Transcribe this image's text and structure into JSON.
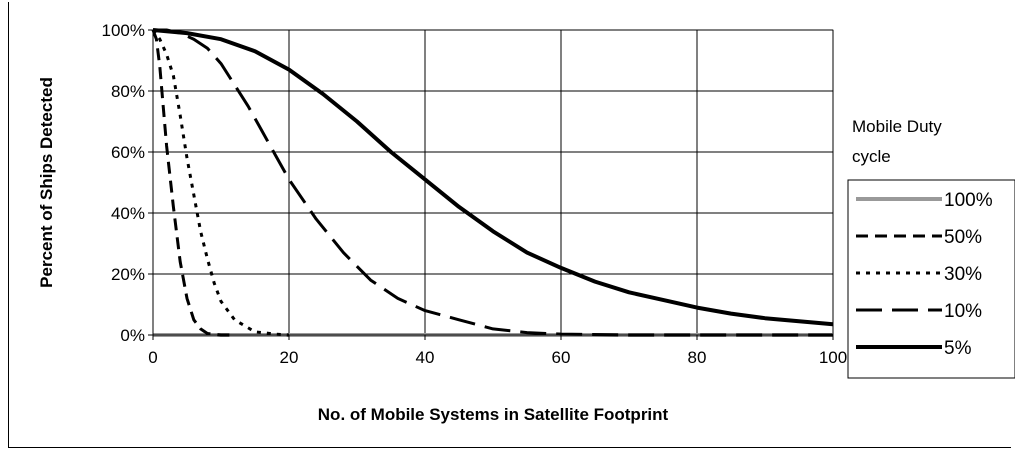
{
  "chart_data": {
    "type": "line",
    "title": "",
    "xlabel": "No. of Mobile Systems in Satellite Footprint",
    "ylabel": "Percent of Ships Detected",
    "xlim": [
      0,
      100
    ],
    "ylim": [
      0,
      1
    ],
    "x_ticks": [
      0,
      20,
      40,
      60,
      80,
      100
    ],
    "x_tick_labels": [
      "0",
      "20",
      "40",
      "60",
      "80",
      "100"
    ],
    "y_ticks": [
      0,
      0.2,
      0.4,
      0.6,
      0.8,
      1.0
    ],
    "y_tick_labels": [
      "0%",
      "20%",
      "40%",
      "60%",
      "80%",
      "100%"
    ],
    "grid": true,
    "legend_title": [
      "Mobile Duty",
      "cycle"
    ],
    "legend_position": "right",
    "series": [
      {
        "name": "100%",
        "color": "#999999",
        "style": "solid",
        "width": 4,
        "x": [
          0,
          100
        ],
        "y": [
          0,
          0
        ]
      },
      {
        "name": "50%",
        "color": "#000000",
        "style": "dash",
        "width": 3,
        "x": [
          0,
          0.5,
          1,
          1.5,
          2,
          3,
          4,
          5,
          6,
          7,
          8,
          10,
          12
        ],
        "y": [
          1.0,
          0.97,
          0.88,
          0.75,
          0.62,
          0.42,
          0.24,
          0.12,
          0.05,
          0.02,
          0.005,
          0.0,
          0.0
        ]
      },
      {
        "name": "30%",
        "color": "#000000",
        "style": "dot",
        "width": 3,
        "x": [
          0,
          1,
          2,
          3,
          4,
          5,
          6,
          7,
          8,
          9,
          10,
          12,
          15,
          18,
          20
        ],
        "y": [
          1.0,
          0.97,
          0.92,
          0.85,
          0.72,
          0.58,
          0.46,
          0.34,
          0.25,
          0.17,
          0.11,
          0.05,
          0.01,
          0.003,
          0.0
        ]
      },
      {
        "name": "10%",
        "color": "#000000",
        "style": "longdash",
        "width": 3,
        "x": [
          0,
          2,
          4,
          6,
          8,
          10,
          12,
          14,
          16,
          18,
          20,
          24,
          28,
          32,
          36,
          40,
          45,
          50,
          55,
          60,
          70,
          80,
          90,
          100
        ],
        "y": [
          1.0,
          1.0,
          0.99,
          0.97,
          0.94,
          0.89,
          0.82,
          0.75,
          0.67,
          0.59,
          0.51,
          0.38,
          0.27,
          0.18,
          0.12,
          0.08,
          0.05,
          0.02,
          0.008,
          0.003,
          0.0,
          0.0,
          0.0,
          0.0
        ]
      },
      {
        "name": "5%",
        "color": "#000000",
        "style": "solid",
        "width": 4,
        "x": [
          0,
          5,
          10,
          15,
          20,
          25,
          30,
          35,
          40,
          45,
          50,
          55,
          60,
          65,
          70,
          75,
          80,
          85,
          90,
          95,
          100
        ],
        "y": [
          1.0,
          0.99,
          0.97,
          0.93,
          0.87,
          0.79,
          0.7,
          0.6,
          0.51,
          0.42,
          0.34,
          0.27,
          0.22,
          0.175,
          0.14,
          0.115,
          0.09,
          0.07,
          0.055,
          0.045,
          0.035
        ]
      }
    ]
  }
}
